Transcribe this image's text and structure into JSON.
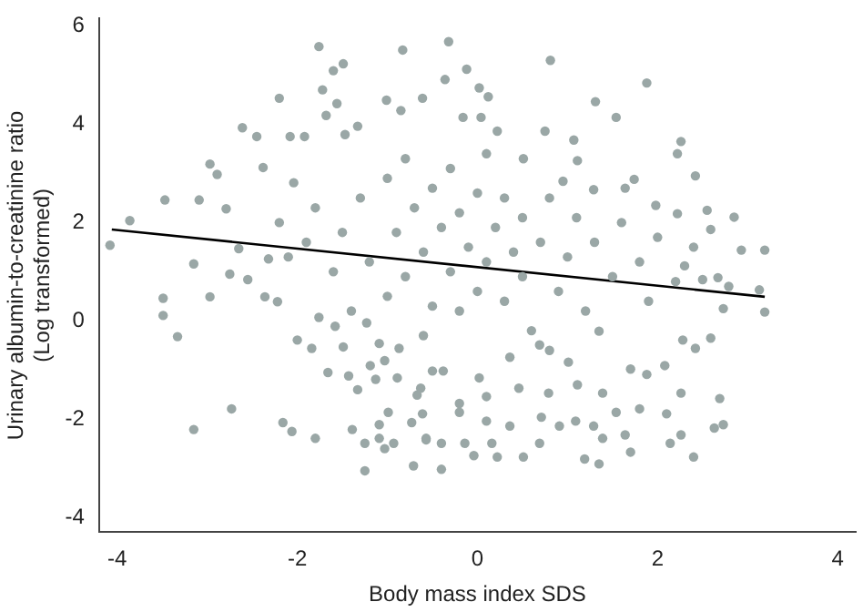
{
  "chart_data": {
    "type": "scatter",
    "xlabel": "Body mass index SDS",
    "ylabel": "Urinary albumin-to-creatinine ratio\n(Log transformed)",
    "xlim": [
      -4.2,
      4.2
    ],
    "xticks": [
      -4,
      -2,
      0,
      2,
      4
    ],
    "ylim": [
      -4.3,
      6.15
    ],
    "yticks": [
      -4,
      -2,
      0,
      2,
      4,
      6
    ],
    "grid": false,
    "legend": false,
    "marker": "circle",
    "series": [
      {
        "color": "#9aa7a6",
        "x": [
          -4.08,
          -3.86,
          -3.47,
          -3.49,
          -2.97,
          -2.89,
          -3.09,
          -2.79,
          -2.61,
          -2.45,
          -2.38,
          -3.15,
          -2.97,
          -2.75,
          -2.65,
          -2.55,
          -2.2,
          -2.08,
          -1.92,
          -1.76,
          -1.72,
          -1.6,
          -1.49,
          -1.56,
          -1.68,
          -1.47,
          -1.33,
          -0.83,
          -1.01,
          -0.85,
          -0.61,
          -2.04,
          -2.2,
          -2.32,
          -2.36,
          -0.32,
          0.81,
          -0.12,
          -0.36,
          0.02,
          0.12,
          1.88,
          1.31,
          1.54,
          -0.16,
          0.04,
          0.75,
          1.07,
          2.26,
          2.22,
          2.42,
          1.74,
          1.98,
          2.22,
          2.55,
          2.85,
          2.59,
          2.93,
          3.19,
          3.13,
          2.67,
          2.5,
          2.79,
          2.3,
          0.22,
          0.51,
          1.11,
          0.95,
          1.64,
          1.29,
          -3.49,
          -3.33,
          -3.15,
          -2.73,
          -2.16,
          -2.06,
          -1.8,
          -2.0,
          -1.84,
          -1.66,
          -1.49,
          -1.39,
          -1.43,
          -1.33,
          -1.25,
          -1.25,
          -1.19,
          -1.13,
          -1.09,
          -1.09,
          -1.03,
          -1.03,
          -0.93,
          -0.89,
          -0.99,
          -0.73,
          -0.71,
          -0.67,
          -0.61,
          -0.57,
          -1.09,
          -0.87,
          -2.22,
          -1.76,
          -1.58,
          -1.23,
          -0.5,
          -0.4,
          -0.57,
          -0.4,
          -0.2,
          -0.14,
          -0.04,
          0.1,
          0.22,
          0.16,
          0.36,
          0.51,
          0.69,
          0.71,
          0.91,
          1.09,
          1.19,
          1.35,
          1.29,
          1.39,
          1.54,
          1.64,
          1.7,
          1.8,
          2.1,
          2.14,
          2.26,
          2.4,
          2.63,
          2.73,
          2.69,
          2.26,
          1.88,
          2.08,
          1.7,
          1.39,
          1.11,
          0.79,
          0.46,
          0.1,
          0.02,
          -0.2,
          -0.38,
          2.28,
          2.42,
          2.59,
          2.73,
          3.19,
          1.35,
          1.01,
          0.36,
          0.69,
          -0.63,
          -1.5,
          -1.3,
          -1.2,
          -1.0,
          -1.0,
          -0.9,
          -0.8,
          -0.8,
          -0.7,
          -0.6,
          -0.5,
          -0.5,
          -0.4,
          -0.3,
          -0.3,
          -0.2,
          -0.2,
          -0.1,
          0.0,
          0.0,
          0.1,
          0.1,
          0.2,
          0.3,
          0.3,
          0.4,
          0.5,
          0.5,
          0.6,
          0.7,
          0.8,
          0.9,
          1.0,
          1.1,
          1.2,
          1.3,
          1.5,
          1.6,
          1.8,
          1.9,
          2.0,
          2.2,
          2.4,
          -1.6,
          -1.9,
          -1.8,
          -1.4,
          -2.1,
          0.8,
          -0.6
        ],
        "values": [
          1.54,
          2.04,
          2.46,
          0.46,
          3.19,
          2.98,
          2.46,
          2.28,
          3.93,
          3.75,
          3.12,
          1.16,
          0.49,
          0.95,
          1.47,
          0.84,
          4.53,
          3.75,
          3.75,
          5.58,
          4.7,
          5.09,
          5.23,
          4.42,
          4.18,
          3.79,
          3.96,
          5.51,
          4.49,
          4.28,
          4.53,
          2.81,
          2.0,
          1.26,
          0.49,
          5.68,
          5.3,
          5.12,
          4.91,
          4.74,
          4.56,
          4.84,
          4.46,
          4.14,
          4.14,
          4.14,
          3.86,
          3.68,
          3.65,
          3.4,
          2.95,
          2.88,
          2.35,
          2.18,
          2.25,
          2.11,
          1.86,
          1.44,
          1.44,
          0.63,
          0.88,
          0.84,
          0.7,
          1.12,
          3.86,
          3.3,
          3.26,
          2.84,
          2.7,
          2.67,
          0.11,
          -0.32,
          -2.21,
          -1.79,
          -2.07,
          -2.25,
          -2.39,
          -0.39,
          -0.56,
          -1.05,
          -0.53,
          -2.21,
          -1.12,
          -1.4,
          -3.05,
          -2.49,
          -0.91,
          -1.19,
          -2.11,
          -2.39,
          -0.81,
          -2.6,
          -2.49,
          -1.16,
          -1.86,
          -2.07,
          -2.95,
          -1.51,
          -1.89,
          -2.42,
          -0.46,
          -0.56,
          0.39,
          0.07,
          -0.11,
          -0.04,
          -1.02,
          -3.02,
          -2.39,
          -2.49,
          -1.86,
          -2.49,
          -2.74,
          -2.04,
          -2.77,
          -2.49,
          -2.14,
          -2.77,
          -2.49,
          -1.96,
          -2.14,
          -2.04,
          -2.81,
          -2.91,
          -2.14,
          -2.39,
          -1.86,
          -2.32,
          -2.67,
          -1.79,
          -1.89,
          -2.49,
          -2.32,
          -2.77,
          -2.18,
          -2.11,
          -1.58,
          -1.47,
          -1.09,
          -0.91,
          -0.98,
          -1.47,
          -1.3,
          -1.47,
          -1.37,
          -1.54,
          -1.16,
          -1.68,
          -1.02,
          -0.39,
          -0.56,
          -0.35,
          0.25,
          0.18,
          -0.21,
          -0.84,
          -0.74,
          -0.49,
          -1.37,
          1.8,
          2.5,
          1.2,
          2.9,
          0.5,
          1.8,
          3.3,
          0.9,
          2.3,
          1.4,
          0.3,
          2.7,
          1.9,
          1.0,
          3.1,
          0.2,
          2.2,
          1.5,
          0.6,
          2.6,
          1.2,
          3.4,
          1.9,
          0.4,
          2.5,
          1.4,
          0.9,
          2.1,
          -0.2,
          1.6,
          2.5,
          0.6,
          1.3,
          2.1,
          0.2,
          1.6,
          0.9,
          2.0,
          1.2,
          0.4,
          1.7,
          0.8,
          1.5,
          1.0,
          1.6,
          2.3,
          0.2,
          1.3,
          -0.6,
          -0.3
        ]
      },
      {
        "type": "line",
        "color": "#000000",
        "marker": "none",
        "x": [
          -4.06,
          3.19
        ],
        "values": [
          1.86,
          0.49
        ]
      }
    ]
  }
}
